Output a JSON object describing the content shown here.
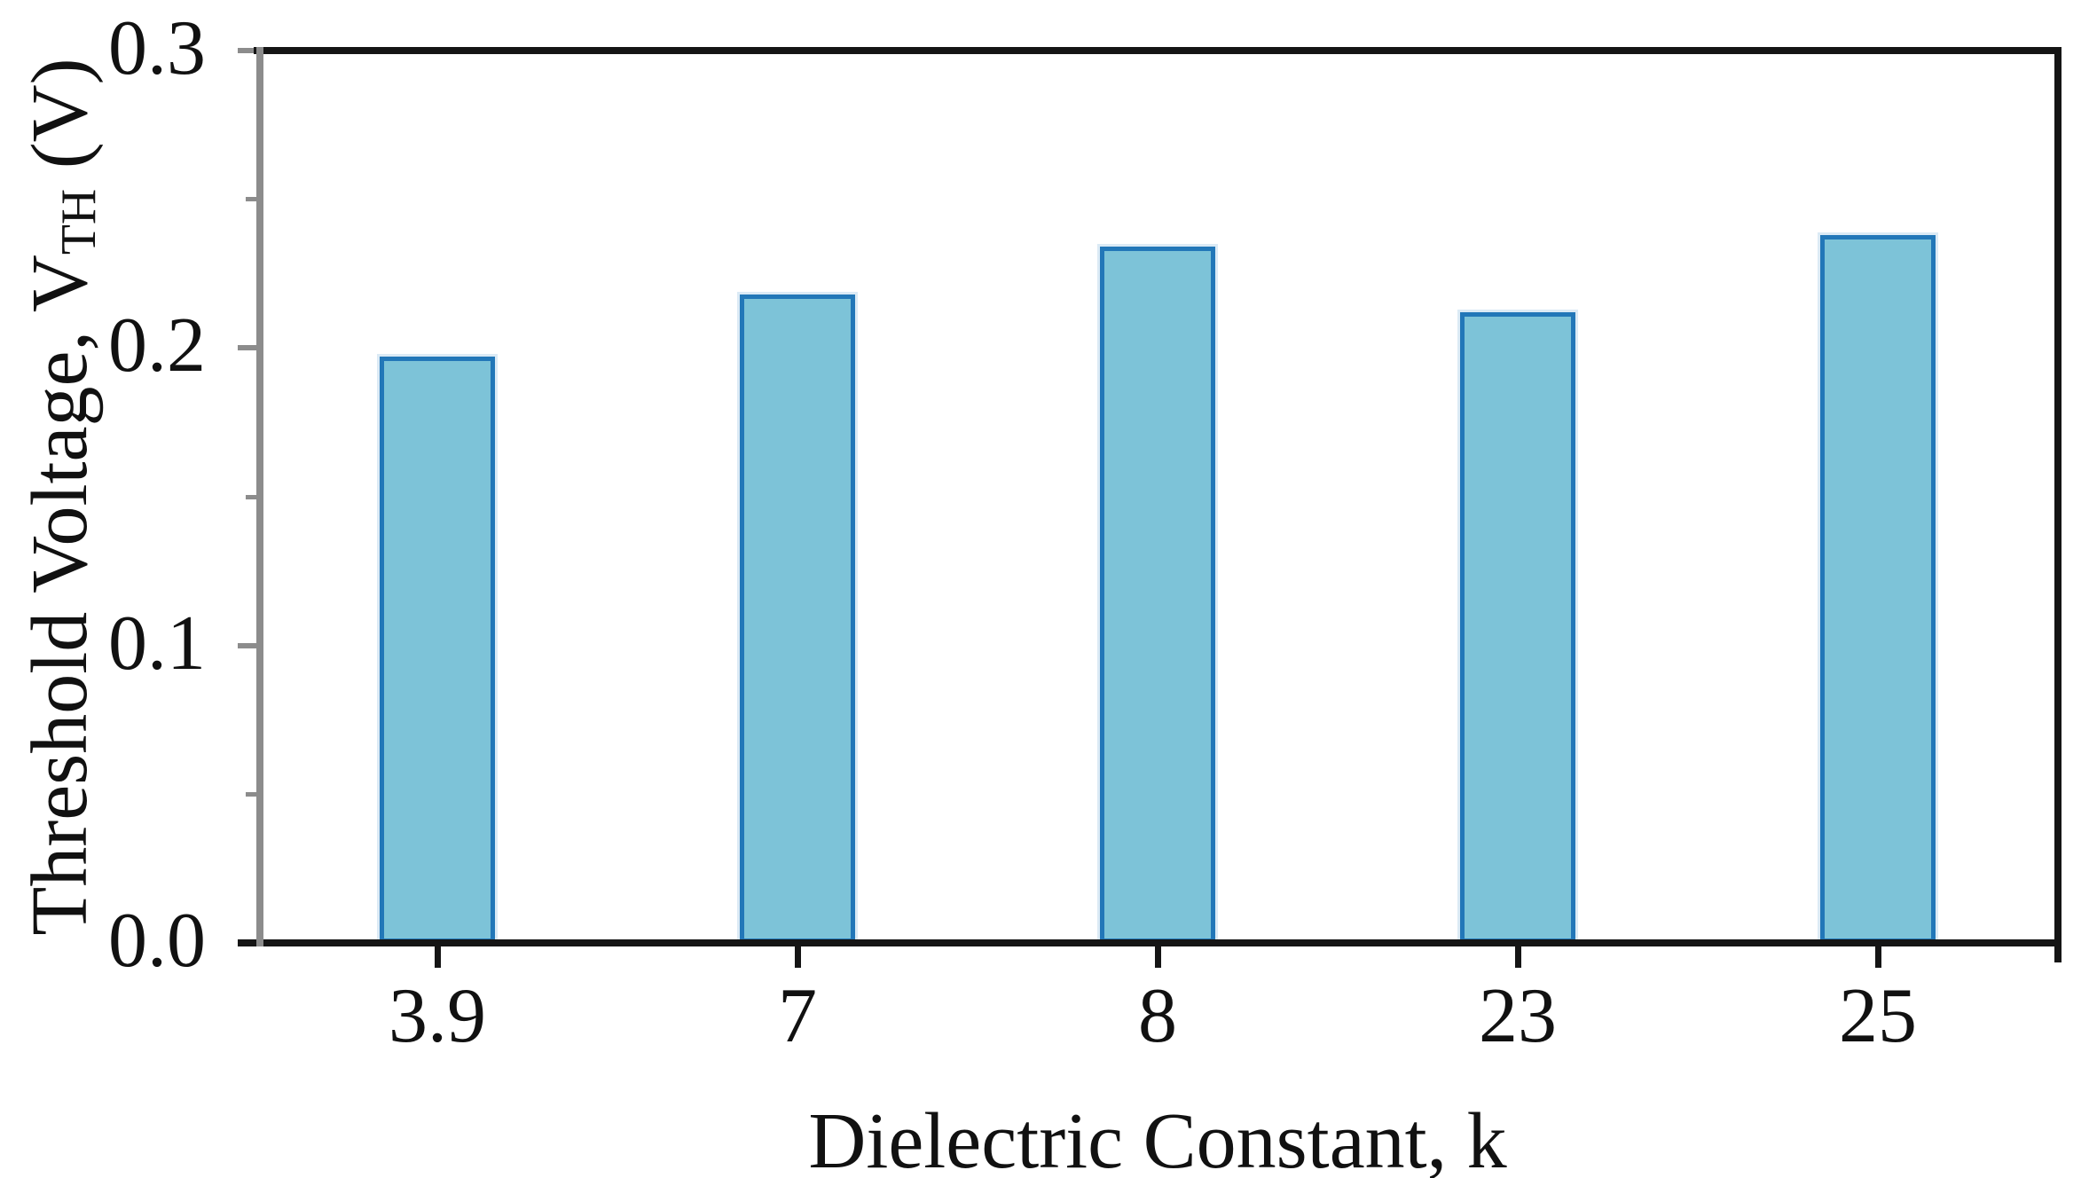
{
  "chart_data": {
    "type": "bar",
    "title": "",
    "categories": [
      "3.9",
      "7",
      "8",
      "23",
      "25"
    ],
    "values": [
      0.197,
      0.218,
      0.234,
      0.212,
      0.238
    ],
    "series_name": "Threshold Voltage",
    "xlabel": "Dielectric Constant, k",
    "ylabel_main": "Threshold Voltage, V",
    "ylabel_sub": "TH",
    "ylabel_suffix": " (V)",
    "ylim": [
      0.0,
      0.3
    ],
    "yticks": [
      0.0,
      0.1,
      0.2,
      0.3
    ],
    "ytick_labels": [
      "0.0",
      "0.1",
      "0.2",
      "0.3"
    ],
    "yticks_minor": [
      0.05,
      0.15,
      0.25
    ],
    "xticks_per_bar": true,
    "grid": false,
    "legend": "none",
    "bar_fill_color": "#7dc3d8",
    "bar_edge_color": "#2277b8",
    "spine_color": "#151515",
    "left_spine_color": "#8c8c8c",
    "left_tick_color": "#8c8c8c",
    "bottom_tick_color": "#151515",
    "text_color": "#111111",
    "background_color": "#ffffff"
  }
}
